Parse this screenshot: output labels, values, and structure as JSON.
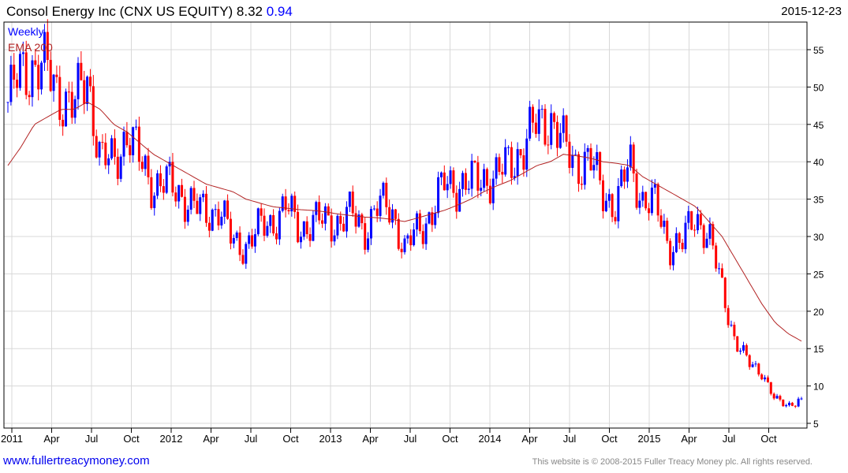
{
  "header": {
    "title": "Consol Energy Inc (CNX US EQUITY) 8.32",
    "change": "0.94",
    "date": "2015-12-23"
  },
  "footer": {
    "site": "www.fullertreacymoney.com",
    "copyright": "This website is © 2008-2015 Fuller Treacy Money plc. All rights reserved."
  },
  "colors": {
    "up": "#0000ff",
    "down": "#ff0000",
    "ema": "#b22222",
    "grid": "#d8d8d8"
  },
  "chart_data": {
    "type": "candlestick",
    "title": "Consol Energy Inc (CNX US EQUITY)",
    "legend": [
      "Weekly",
      "EMA 200"
    ],
    "legend_position": "top-left",
    "ylim": [
      5,
      58
    ],
    "y_ticks": [
      5,
      10,
      15,
      20,
      25,
      30,
      35,
      40,
      45,
      50,
      55
    ],
    "x_ticks": [
      "2011",
      "Apr",
      "Jul",
      "Oct",
      "2012",
      "Apr",
      "Jul",
      "Oct",
      "2013",
      "Apr",
      "Jul",
      "Oct",
      "2014",
      "Apr",
      "Jul",
      "Oct",
      "2015",
      "Apr",
      "Jul",
      "Oct"
    ],
    "monthly_close": [
      48,
      52,
      53,
      52,
      49,
      47,
      52,
      40,
      40,
      44,
      40,
      37,
      37,
      36,
      34,
      33,
      34,
      29,
      29,
      31,
      32,
      34,
      31,
      32,
      32,
      32,
      33,
      31,
      34,
      34,
      28,
      31,
      33,
      37,
      37,
      37,
      38,
      38,
      40,
      42,
      45,
      46,
      42,
      40,
      40,
      36,
      34,
      40,
      35,
      34,
      29,
      29,
      33,
      30,
      23,
      16,
      13,
      12,
      8,
      7.5,
      8.32
    ],
    "ema200_monthly": [
      39.5,
      42,
      45,
      46,
      47,
      47,
      48,
      47,
      45,
      44,
      42.5,
      41,
      40,
      39,
      38,
      37,
      36.5,
      36,
      35,
      34.5,
      34,
      33.8,
      33.6,
      33.5,
      33.3,
      33,
      32.8,
      32.6,
      32.5,
      32.3,
      32,
      32.5,
      33,
      33.5,
      34.2,
      35,
      36,
      36.8,
      37.5,
      38.5,
      39.5,
      40,
      41,
      40.8,
      40.5,
      40,
      39.8,
      39.5,
      38,
      37,
      36,
      35,
      34,
      32,
      30,
      27,
      24,
      21,
      18.5,
      17,
      16
    ]
  }
}
